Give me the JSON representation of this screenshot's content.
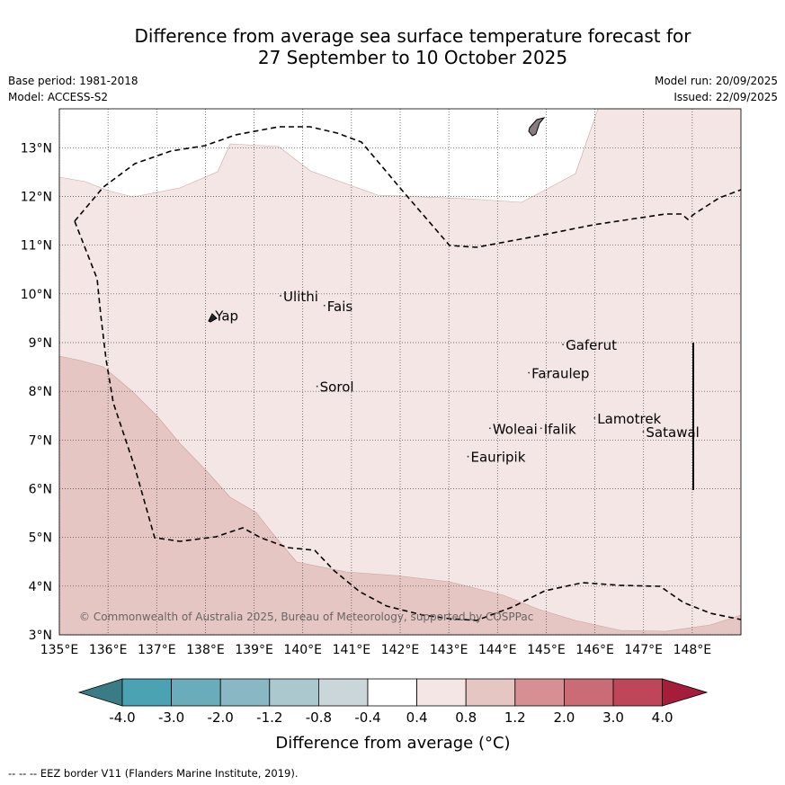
{
  "title_line1": "Difference from average sea surface temperature forecast for",
  "title_line2": "27 September to 10 October 2025",
  "base_period": "Base period: 1981-2018",
  "model": "Model: ACCESS-S2",
  "model_run": "Model run: 20/09/2025",
  "issued": "Issued: 22/09/2025",
  "copyright": "© Commonwealth of Australia 2025, Bureau of Meteorology, supported by COSPPac",
  "footnote": "--  --  -- EEZ border V11 (Flanders Marine Institute, 2019).",
  "map": {
    "lon_ticks": [
      "135°E",
      "136°E",
      "137°E",
      "138°E",
      "139°E",
      "140°E",
      "141°E",
      "142°E",
      "143°E",
      "144°E",
      "145°E",
      "146°E",
      "147°E",
      "148°E"
    ],
    "lat_ticks": [
      "3°N",
      "4°N",
      "5°N",
      "6°N",
      "7°N",
      "8°N",
      "9°N",
      "10°N",
      "11°N",
      "12°N",
      "13°N"
    ],
    "places": [
      {
        "name": "Yap",
        "lon": 138.2,
        "lat": 9.45
      },
      {
        "name": "Ulithi",
        "lon": 139.6,
        "lat": 9.85
      },
      {
        "name": "Fais",
        "lon": 140.5,
        "lat": 9.65
      },
      {
        "name": "Sorol",
        "lon": 140.35,
        "lat": 7.99
      },
      {
        "name": "Gaferut",
        "lon": 145.4,
        "lat": 8.85
      },
      {
        "name": "Faraulep",
        "lon": 144.7,
        "lat": 8.27
      },
      {
        "name": "Lamotrek",
        "lon": 146.05,
        "lat": 7.34
      },
      {
        "name": "Satawal",
        "lon": 147.05,
        "lat": 7.06
      },
      {
        "name": "Woleai",
        "lon": 143.9,
        "lat": 7.13
      },
      {
        "name": "Ifalik",
        "lon": 144.95,
        "lat": 7.13
      },
      {
        "name": "Eauripik",
        "lon": 143.45,
        "lat": 6.55
      }
    ],
    "anomaly_classes": [
      {
        "range": "0.4 to 0.8",
        "color": "#f4e6e5"
      },
      {
        "range": "0.8 to 1.2",
        "color": "#e6c6c2"
      }
    ]
  },
  "colorbar": {
    "label": "Difference from average (°C)",
    "ticks": [
      "-4.0",
      "-3.0",
      "-2.0",
      "-1.2",
      "-0.8",
      "-0.4",
      "0.4",
      "0.8",
      "1.2",
      "2.0",
      "3.0",
      "4.0"
    ],
    "colors": [
      "#3a7c86",
      "#4aa2b3",
      "#6aacba",
      "#8ab7c4",
      "#acc8cf",
      "#cbd6da",
      "#ffffff",
      "#f4e6e5",
      "#e6c6c2",
      "#d78f94",
      "#cb6b75",
      "#bf4558",
      "#a51d3b"
    ]
  }
}
